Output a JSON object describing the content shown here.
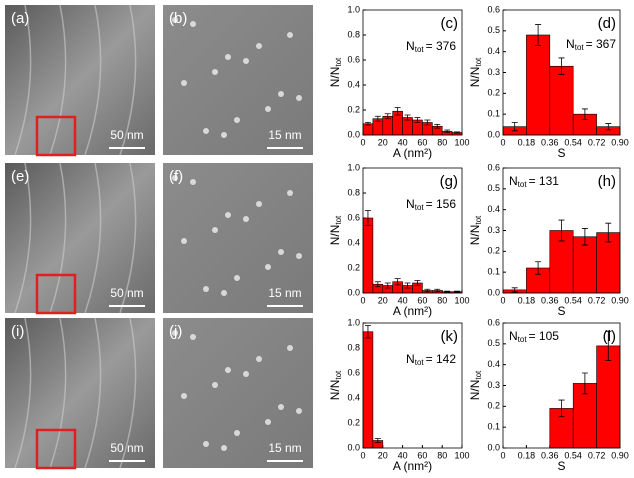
{
  "images": [
    {
      "label": "(a)",
      "scale": "50 nm",
      "roi": true,
      "kind": "large"
    },
    {
      "label": "(b)",
      "scale": "15 nm",
      "roi": false,
      "kind": "zoom"
    },
    {
      "label": "(e)",
      "scale": "50 nm",
      "roi": true,
      "kind": "large"
    },
    {
      "label": "(f)",
      "scale": "15 nm",
      "roi": false,
      "kind": "zoom"
    },
    {
      "label": "(i)",
      "scale": "50 nm",
      "roi": true,
      "kind": "large"
    },
    {
      "label": "(j)",
      "scale": "15 nm",
      "roi": false,
      "kind": "zoom"
    }
  ],
  "chart_data": [
    {
      "type": "histogram",
      "panel": "(c)",
      "n_annotation": {
        "main": "N",
        "sub": "tot",
        "value": "= 376"
      },
      "ylabel": {
        "main": "N/N",
        "sub": "tot"
      },
      "xlabel": "A (nm²)",
      "color": "#ff0000",
      "bins": [
        0,
        10,
        20,
        30,
        40,
        50,
        60,
        70,
        80,
        90,
        100
      ],
      "values": [
        0.09,
        0.13,
        0.15,
        0.19,
        0.14,
        0.12,
        0.1,
        0.07,
        0.03,
        0.02
      ],
      "errors": [
        0.01,
        0.02,
        0.02,
        0.03,
        0.02,
        0.02,
        0.02,
        0.015,
        0.01,
        0.005
      ],
      "xlim": [
        0,
        100
      ],
      "xticks": [
        0,
        20,
        40,
        60,
        80,
        100
      ],
      "ylim": [
        0,
        1
      ],
      "yticks": [
        {
          "value": 0,
          "label": "0.0"
        },
        0.2,
        0.4,
        0.6,
        0.8,
        {
          "value": 1,
          "label": "1.0"
        }
      ]
    },
    {
      "type": "histogram",
      "panel": "(d)",
      "n_annotation": {
        "main": "N",
        "sub": "tot",
        "value": "= 367"
      },
      "ylabel": {
        "main": "N/N",
        "sub": "tot"
      },
      "xlabel": "S",
      "color": "#ff0000",
      "bins": [
        0,
        0.18,
        0.36,
        0.54,
        0.72,
        0.9
      ],
      "values": [
        0.04,
        0.48,
        0.33,
        0.1,
        0.04
      ],
      "errors": [
        0.02,
        0.05,
        0.04,
        0.025,
        0.015
      ],
      "xlim": [
        0,
        0.9
      ],
      "xticks": [
        0,
        0.18,
        0.36,
        0.54,
        0.72,
        {
          "value": 0.9,
          "label": "0.90"
        }
      ],
      "ylim": [
        0,
        0.6
      ],
      "yticks": [
        {
          "value": 0,
          "label": "0.0"
        },
        0.1,
        0.2,
        0.3,
        0.4,
        0.5,
        0.6
      ]
    },
    {
      "type": "histogram",
      "panel": "(g)",
      "n_annotation": {
        "main": "N",
        "sub": "tot",
        "value": "= 156"
      },
      "ylabel": {
        "main": "N/N",
        "sub": "tot"
      },
      "xlabel": "A (nm²)",
      "color": "#ff0000",
      "bins": [
        0,
        10,
        20,
        30,
        40,
        50,
        60,
        70,
        80,
        90,
        100
      ],
      "values": [
        0.6,
        0.07,
        0.06,
        0.09,
        0.06,
        0.08,
        0.02,
        0.02,
        0.01,
        0.01
      ],
      "errors": [
        0.06,
        0.02,
        0.02,
        0.025,
        0.02,
        0.02,
        0.01,
        0.01,
        0.005,
        0.005
      ],
      "xlim": [
        0,
        100
      ],
      "xticks": [
        0,
        20,
        40,
        60,
        80,
        100
      ],
      "ylim": [
        0,
        1
      ],
      "yticks": [
        {
          "value": 0,
          "label": "0.0"
        },
        0.2,
        0.4,
        0.6,
        0.8,
        {
          "value": 1,
          "label": "1.0"
        }
      ]
    },
    {
      "type": "histogram",
      "panel": "(h)",
      "n_annotation": {
        "main": "N",
        "sub": "tot",
        "value": "= 131"
      },
      "ylabel": {
        "main": "N/N",
        "sub": "tot"
      },
      "xlabel": "S",
      "color": "#ff0000",
      "bins": [
        0,
        0.18,
        0.36,
        0.54,
        0.72,
        0.9
      ],
      "values": [
        0.015,
        0.12,
        0.3,
        0.27,
        0.29
      ],
      "errors": [
        0.01,
        0.03,
        0.05,
        0.04,
        0.045
      ],
      "xlim": [
        0,
        0.9
      ],
      "xticks": [
        0,
        0.18,
        0.36,
        0.54,
        0.72,
        {
          "value": 0.9,
          "label": "0.90"
        }
      ],
      "ylim": [
        0,
        0.6
      ],
      "yticks": [
        {
          "value": 0,
          "label": "0.0"
        },
        0.1,
        0.2,
        0.3,
        0.4,
        0.5,
        0.6
      ]
    },
    {
      "type": "histogram",
      "panel": "(k)",
      "n_annotation": {
        "main": "N",
        "sub": "tot",
        "value": "= 142"
      },
      "ylabel": {
        "main": "N/N",
        "sub": "tot"
      },
      "xlabel": "A (nm²)",
      "color": "#ff0000",
      "bins": [
        0,
        10,
        20
      ],
      "values": [
        0.93,
        0.06
      ],
      "errors": [
        0.05,
        0.015
      ],
      "xlim": [
        0,
        100
      ],
      "xticks": [
        0,
        20,
        40,
        60,
        80,
        100
      ],
      "ylim": [
        0,
        1
      ],
      "yticks": [
        {
          "value": 0,
          "label": "0.0"
        },
        0.2,
        0.4,
        0.6,
        0.8,
        {
          "value": 1,
          "label": "1.0"
        }
      ]
    },
    {
      "type": "histogram",
      "panel": "(l)",
      "n_annotation": {
        "main": "N",
        "sub": "tot",
        "value": "= 105"
      },
      "ylabel": {
        "main": "N/N",
        "sub": "tot"
      },
      "xlabel": "S",
      "color": "#ff0000",
      "bins": [
        0.36,
        0.54,
        0.72,
        0.9
      ],
      "values": [
        0.19,
        0.31,
        0.49
      ],
      "errors": [
        0.04,
        0.05,
        0.07
      ],
      "xlim": [
        0,
        0.9
      ],
      "xticks": [
        0,
        0.18,
        0.36,
        0.54,
        0.72,
        {
          "value": 0.9,
          "label": "0.90"
        }
      ],
      "ylim": [
        0,
        0.6
      ],
      "yticks": [
        {
          "value": 0,
          "label": "0.0"
        },
        0.1,
        0.2,
        0.3,
        0.4,
        0.5,
        0.6
      ]
    }
  ]
}
